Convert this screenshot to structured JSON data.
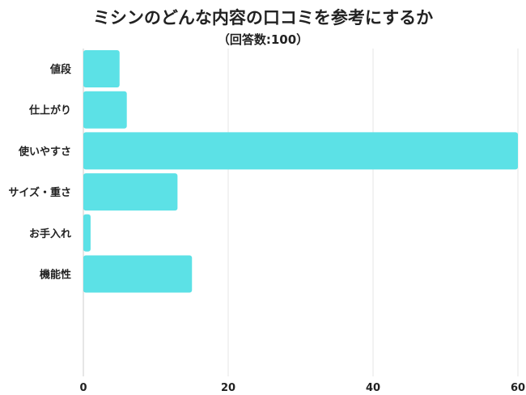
{
  "chart_data": {
    "type": "bar",
    "orientation": "horizontal",
    "title": "ミシンのどんな内容の口コミを参考にするか",
    "subtitle": "（回答数:100）",
    "categories": [
      "値段",
      "仕上がり",
      "使いやすさ",
      "サイズ・重さ",
      "お手入れ",
      "機能性"
    ],
    "values": [
      5,
      6,
      60,
      13,
      1,
      15
    ],
    "xlim": [
      0,
      60
    ],
    "xticks": [
      0,
      20,
      40,
      60
    ],
    "grid": true,
    "color": "#5ce1e6"
  }
}
